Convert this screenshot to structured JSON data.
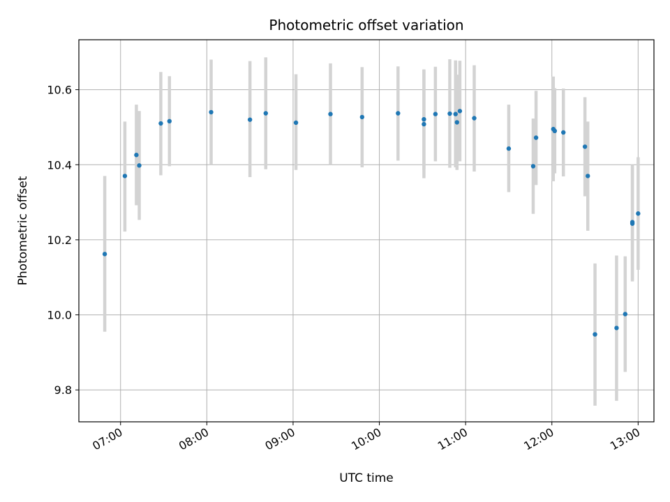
{
  "chart_data": {
    "type": "scatter",
    "title": "Photometric offset variation",
    "xlabel": "UTC time",
    "ylabel": "Photometric offset",
    "x_unit": "UTC hh:mm",
    "xlim": [
      "06:31",
      "13:11"
    ],
    "ylim": [
      9.715,
      10.733
    ],
    "xticks": [
      "07:00",
      "08:00",
      "09:00",
      "10:00",
      "11:00",
      "12:00",
      "13:00"
    ],
    "yticks": [
      9.8,
      10.0,
      10.2,
      10.4,
      10.6
    ],
    "ytick_labels": [
      "9.8",
      "10.0",
      "10.2",
      "10.4",
      "10.6"
    ],
    "grid": true,
    "legend": "none",
    "colors": {
      "marker": "#1f77b4",
      "errorbar": "#d3d3d3",
      "grid": "#b0b0b0"
    },
    "series": [
      {
        "points": [
          {
            "t": "06:49",
            "y": 10.162,
            "lo": 9.955,
            "hi": 10.37
          },
          {
            "t": "07:03",
            "y": 10.37,
            "lo": 10.222,
            "hi": 10.515
          },
          {
            "t": "07:11",
            "y": 10.426,
            "lo": 10.292,
            "hi": 10.56
          },
          {
            "t": "07:13",
            "y": 10.398,
            "lo": 10.253,
            "hi": 10.543
          },
          {
            "t": "07:28",
            "y": 10.51,
            "lo": 10.372,
            "hi": 10.647
          },
          {
            "t": "07:34",
            "y": 10.516,
            "lo": 10.396,
            "hi": 10.636
          },
          {
            "t": "08:03",
            "y": 10.54,
            "lo": 10.4,
            "hi": 10.68
          },
          {
            "t": "08:30",
            "y": 10.52,
            "lo": 10.367,
            "hi": 10.676
          },
          {
            "t": "08:41",
            "y": 10.537,
            "lo": 10.388,
            "hi": 10.686
          },
          {
            "t": "09:02",
            "y": 10.512,
            "lo": 10.386,
            "hi": 10.641
          },
          {
            "t": "09:26",
            "y": 10.535,
            "lo": 10.4,
            "hi": 10.67
          },
          {
            "t": "09:48",
            "y": 10.527,
            "lo": 10.393,
            "hi": 10.66
          },
          {
            "t": "10:13",
            "y": 10.537,
            "lo": 10.411,
            "hi": 10.662
          },
          {
            "t": "10:31",
            "y": 10.521,
            "lo": 10.388,
            "hi": 10.654
          },
          {
            "t": "10:31",
            "y": 10.508,
            "lo": 10.364,
            "hi": 10.652
          },
          {
            "t": "10:39",
            "y": 10.535,
            "lo": 10.409,
            "hi": 10.661
          },
          {
            "t": "10:49",
            "y": 10.536,
            "lo": 10.392,
            "hi": 10.681
          },
          {
            "t": "10:53",
            "y": 10.535,
            "lo": 10.393,
            "hi": 10.678
          },
          {
            "t": "10:54",
            "y": 10.513,
            "lo": 10.386,
            "hi": 10.64
          },
          {
            "t": "10:56",
            "y": 10.543,
            "lo": 10.409,
            "hi": 10.677
          },
          {
            "t": "11:06",
            "y": 10.524,
            "lo": 10.382,
            "hi": 10.665
          },
          {
            "t": "11:30",
            "y": 10.443,
            "lo": 10.327,
            "hi": 10.56
          },
          {
            "t": "11:47",
            "y": 10.396,
            "lo": 10.269,
            "hi": 10.523
          },
          {
            "t": "11:49",
            "y": 10.472,
            "lo": 10.346,
            "hi": 10.597
          },
          {
            "t": "12:01",
            "y": 10.495,
            "lo": 10.356,
            "hi": 10.635
          },
          {
            "t": "12:02",
            "y": 10.49,
            "lo": 10.377,
            "hi": 10.604
          },
          {
            "t": "12:08",
            "y": 10.486,
            "lo": 10.369,
            "hi": 10.603
          },
          {
            "t": "12:23",
            "y": 10.448,
            "lo": 10.316,
            "hi": 10.58
          },
          {
            "t": "12:25",
            "y": 10.37,
            "lo": 10.224,
            "hi": 10.515
          },
          {
            "t": "12:30",
            "y": 9.948,
            "lo": 9.758,
            "hi": 10.137
          },
          {
            "t": "12:45",
            "y": 9.965,
            "lo": 9.771,
            "hi": 10.158
          },
          {
            "t": "12:51",
            "y": 10.002,
            "lo": 9.848,
            "hi": 10.156
          },
          {
            "t": "12:56",
            "y": 10.247,
            "lo": 10.089,
            "hi": 10.4
          },
          {
            "t": "12:56",
            "y": 10.243,
            "lo": 10.093,
            "hi": 10.394
          },
          {
            "t": "13:00",
            "y": 10.27,
            "lo": 10.12,
            "hi": 10.42
          }
        ]
      }
    ]
  }
}
